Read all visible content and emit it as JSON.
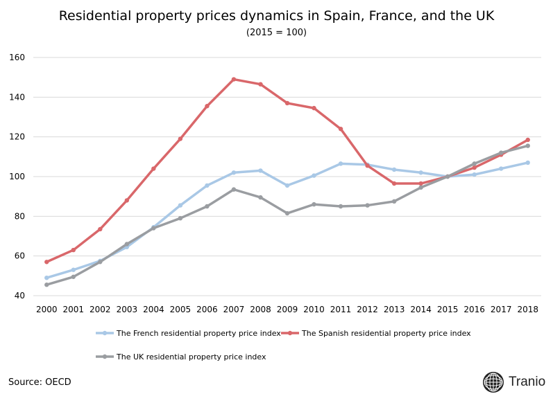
{
  "chart_data": {
    "type": "line",
    "title": "Residential property prices dynamics in Spain, France, and the UK",
    "subtitle": "(2015 = 100)",
    "categories": [
      "2000",
      "2001",
      "2002",
      "2003",
      "2004",
      "2005",
      "2006",
      "2007",
      "2008",
      "2009",
      "2010",
      "2011",
      "2012",
      "2013",
      "2014",
      "2015",
      "2016",
      "2017",
      "2018"
    ],
    "ylim": [
      40,
      160
    ],
    "yticks": [
      40,
      60,
      80,
      100,
      120,
      140,
      160
    ],
    "grid": true,
    "legend_position": "bottom",
    "series": [
      {
        "name": "The French residential property price index",
        "color": "#a9c8e6",
        "values": [
          49,
          53,
          57.5,
          64.5,
          74.5,
          85.5,
          95.5,
          102,
          103,
          95.5,
          100.5,
          106.5,
          106,
          103.5,
          102,
          100,
          101,
          104,
          107
        ]
      },
      {
        "name": "The Spanish residential property price index",
        "color": "#d9676a",
        "values": [
          57,
          63,
          73.5,
          88,
          104,
          119,
          135.5,
          149,
          146.5,
          137,
          134.5,
          124,
          105.5,
          96.5,
          96.5,
          100,
          104.5,
          111,
          118.5
        ]
      },
      {
        "name": "The UK residential property price index",
        "color": "#9a9da1",
        "values": [
          45.5,
          49.5,
          57,
          66,
          74,
          79,
          85,
          93.5,
          89.5,
          81.5,
          86,
          85,
          85.5,
          87.5,
          94.5,
          100,
          106.5,
          112,
          115.5
        ]
      }
    ]
  },
  "source": "Source: OECD",
  "brand": {
    "name": "Tranio",
    "icon": "globe-icon"
  }
}
